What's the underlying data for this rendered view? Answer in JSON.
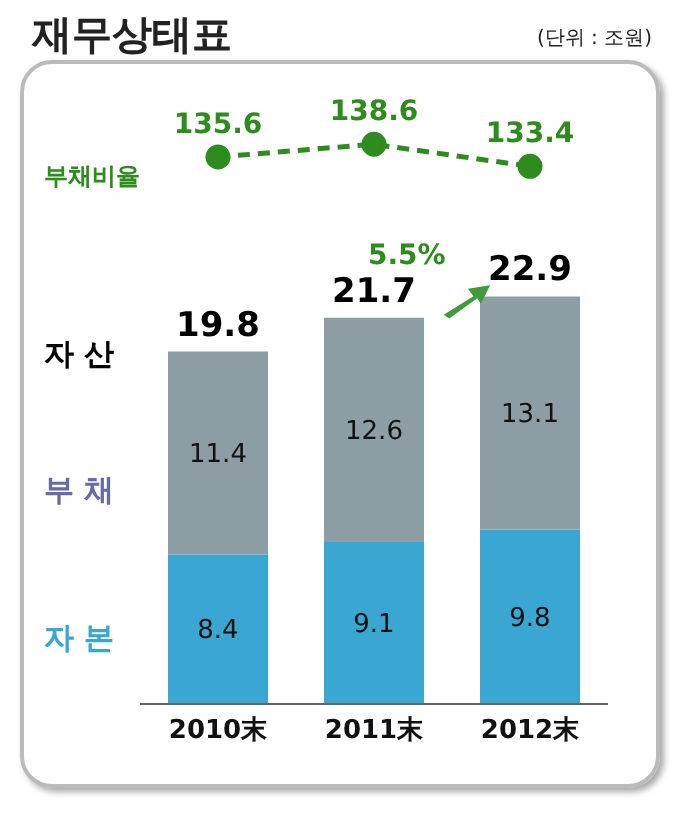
{
  "chart_data": [
    {
      "type": "line",
      "title": "재무상태표",
      "categories": [
        null,
        null,
        null
      ],
      "series": [
        {
          "name": "부채비율",
          "color": "#2e8b1e",
          "values": [
            135.6,
            138.6,
            133.4
          ]
        }
      ],
      "line_style": "dashed",
      "marker": "circle",
      "data_labels": true,
      "tick_labels": false,
      "annotations": [
        "(단위 : 조원)"
      ]
    },
    {
      "type": "bar",
      "stacked": true,
      "categories": [
        "2010末",
        "2011末",
        "2012末"
      ],
      "series": [
        {
          "name": "자 본",
          "color": "#3aa6d2",
          "values": [
            8.4,
            9.1,
            9.8
          ]
        },
        {
          "name": "부 채",
          "color": "#8c9ea3",
          "values": [
            11.4,
            12.6,
            13.1
          ]
        }
      ],
      "totals": [
        "19.8",
        "21.7",
        "22.9"
      ],
      "data_labels": true,
      "tick_labels": "x",
      "annotations": [
        "자 산",
        "5.5%"
      ]
    }
  ]
}
